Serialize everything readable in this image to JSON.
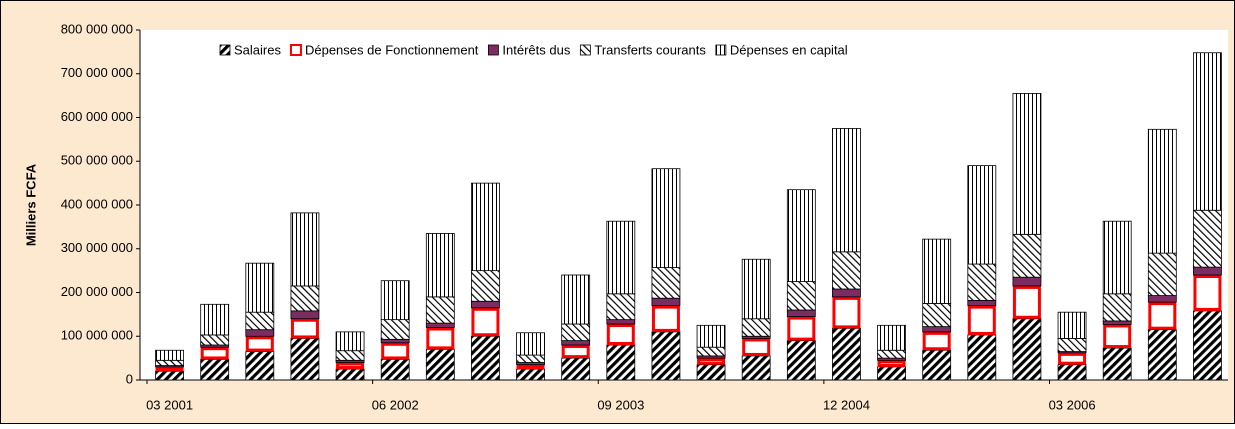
{
  "chart_data": {
    "type": "stacked-bar",
    "y_label": "Milliers FCFA",
    "categories": [
      "03 2001",
      null,
      null,
      null,
      null,
      "06 2002",
      null,
      null,
      null,
      null,
      "09 2003",
      null,
      null,
      null,
      null,
      "12 2004",
      null,
      null,
      null,
      null,
      "03 2006",
      null,
      null,
      null
    ],
    "series": [
      {
        "name": "Salaires",
        "color": "#000000",
        "pattern": "diagonal",
        "values": [
          20000000,
          47000000,
          65000000,
          95000000,
          25000000,
          47000000,
          70000000,
          100000000,
          25000000,
          50000000,
          80000000,
          110000000,
          35000000,
          55000000,
          90000000,
          118000000,
          30000000,
          68000000,
          103000000,
          140000000,
          35000000,
          73000000,
          115000000,
          158000000
        ]
      },
      {
        "name": "Dépenses de Fonctionnement",
        "color": "#ff0000",
        "pattern": "outline",
        "values": [
          10000000,
          28000000,
          35000000,
          45000000,
          15000000,
          38000000,
          50000000,
          65000000,
          10000000,
          30000000,
          48000000,
          60000000,
          15000000,
          40000000,
          55000000,
          72000000,
          15000000,
          42000000,
          67000000,
          75000000,
          27000000,
          54000000,
          63000000,
          82000000
        ]
      },
      {
        "name": "Intérêts dus",
        "color": "#7b2d63",
        "pattern": "solid",
        "values": [
          3000000,
          5000000,
          15000000,
          18000000,
          5000000,
          8000000,
          10000000,
          15000000,
          5000000,
          10000000,
          10000000,
          17000000,
          5000000,
          5000000,
          15000000,
          18000000,
          5000000,
          12000000,
          12000000,
          20000000,
          3000000,
          8000000,
          15000000,
          18000000
        ]
      },
      {
        "name": "Transferts courants",
        "color": "#000000",
        "pattern": "diagonal-back",
        "values": [
          12000000,
          23000000,
          40000000,
          57000000,
          22000000,
          45000000,
          60000000,
          70000000,
          17000000,
          38000000,
          59000000,
          70000000,
          20000000,
          40000000,
          65000000,
          85000000,
          18000000,
          53000000,
          83000000,
          98000000,
          30000000,
          62000000,
          97000000,
          130000000
        ]
      },
      {
        "name": "Dépenses en capital",
        "color": "#000000",
        "pattern": "vertical",
        "values": [
          23000000,
          70000000,
          112000000,
          167000000,
          43000000,
          89000000,
          145000000,
          200000000,
          51000000,
          112000000,
          166000000,
          226000000,
          50000000,
          136000000,
          210000000,
          282000000,
          57000000,
          147000000,
          225000000,
          322000000,
          60000000,
          166000000,
          283000000,
          360000000
        ]
      }
    ],
    "ylim": [
      0,
      800000000
    ],
    "yticks": [
      {
        "value": 0,
        "label": "0"
      },
      {
        "value": 100000000,
        "label": "100 000 000"
      },
      {
        "value": 200000000,
        "label": "200 000 000"
      },
      {
        "value": 300000000,
        "label": "300 000 000"
      },
      {
        "value": 400000000,
        "label": "400 000 000"
      },
      {
        "value": 500000000,
        "label": "500 000 000"
      },
      {
        "value": 600000000,
        "label": "600 000 000"
      },
      {
        "value": 700000000,
        "label": "700 000 000"
      },
      {
        "value": 800000000,
        "label": "800 000 000"
      }
    ],
    "legend": "top"
  }
}
